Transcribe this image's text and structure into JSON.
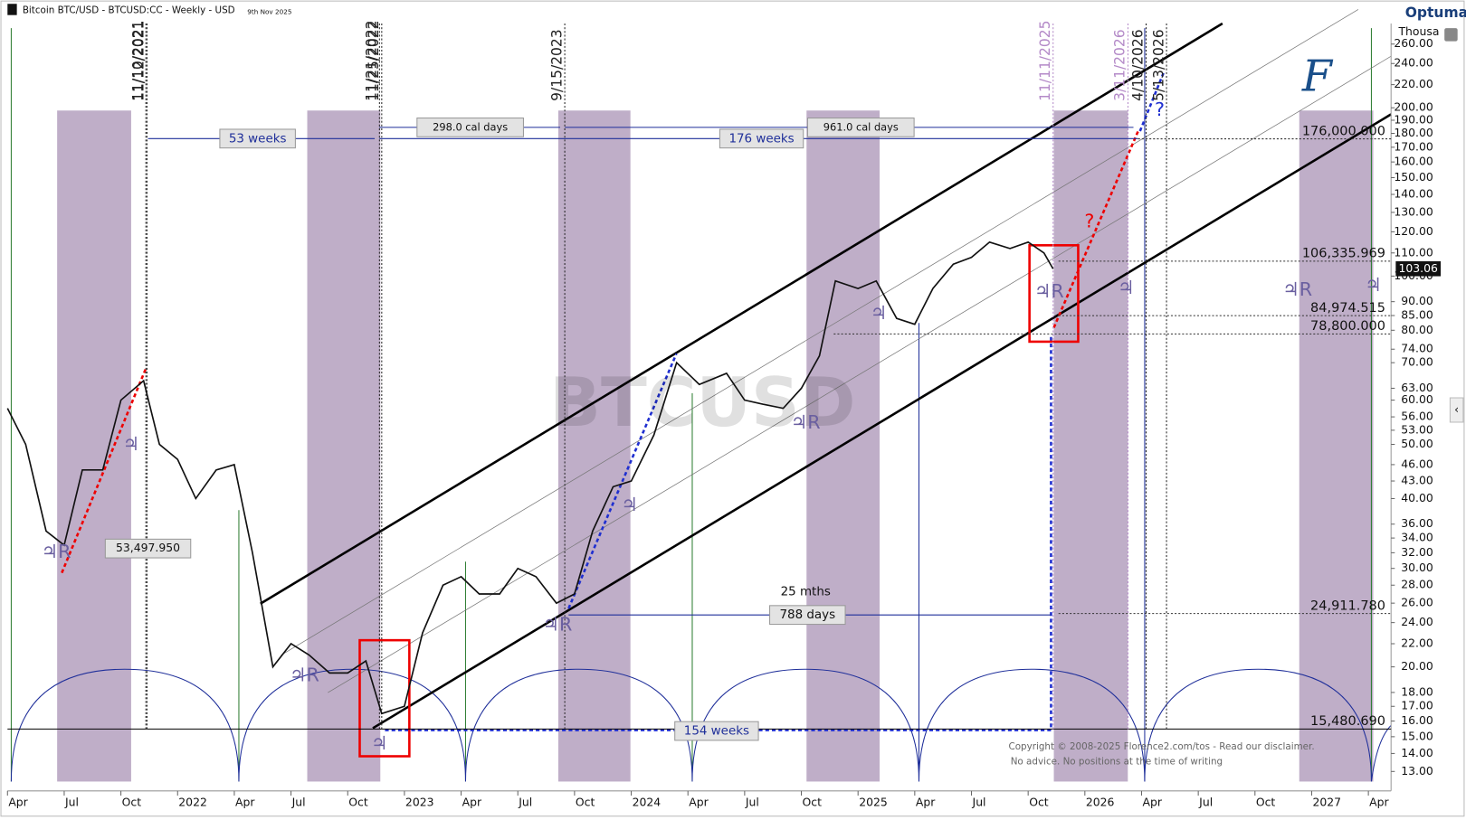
{
  "chart_data": {
    "type": "line",
    "title": "Bitcoin BTC/USD - BTCUSD:CC - Weekly - USD",
    "subtitle": "9th Nov 2025",
    "brand": "Optuma",
    "unit_label": "Thousa",
    "watermark": "BTCUSD",
    "log_scale": true,
    "x": [
      2021.25,
      2021.33,
      2021.42,
      2021.5,
      2021.58,
      2021.67,
      2021.75,
      2021.85,
      2021.92,
      2022.0,
      2022.08,
      2022.17,
      2022.25,
      2022.33,
      2022.42,
      2022.5,
      2022.58,
      2022.67,
      2022.75,
      2022.83,
      2022.9,
      2023.0,
      2023.08,
      2023.17,
      2023.25,
      2023.33,
      2023.42,
      2023.5,
      2023.58,
      2023.67,
      2023.75,
      2023.83,
      2023.92,
      2024.0,
      2024.1,
      2024.2,
      2024.3,
      2024.42,
      2024.5,
      2024.58,
      2024.67,
      2024.75,
      2024.83,
      2024.9,
      2025.0,
      2025.08,
      2025.17,
      2025.25,
      2025.33,
      2025.42,
      2025.5,
      2025.58,
      2025.67,
      2025.75,
      2025.82,
      2025.86
    ],
    "series": [
      {
        "name": "BTCUSD",
        "color": "#111111",
        "values": [
          58,
          50,
          35,
          33,
          45,
          45,
          60,
          65,
          50,
          47,
          40,
          45,
          46,
          32,
          20,
          22,
          21,
          19.5,
          19.5,
          20.5,
          16.5,
          17,
          23,
          28,
          29,
          27,
          27,
          30,
          29,
          26,
          27,
          35,
          42,
          43,
          52,
          70,
          64,
          67,
          60,
          59,
          58,
          63,
          72,
          98,
          95,
          98,
          84,
          82,
          95,
          105,
          108,
          115,
          112,
          115,
          110,
          103
        ]
      }
    ],
    "last_price": 103.06,
    "xlim": [
      2021.25,
      2027.35
    ],
    "ylim": [
      12,
      283
    ],
    "xticks": [
      {
        "value": 2021.25,
        "label": "Apr"
      },
      {
        "value": 2021.5,
        "label": "Jul"
      },
      {
        "value": 2021.75,
        "label": "Oct"
      },
      2022,
      {
        "value": 2022.25,
        "label": "Apr"
      },
      {
        "value": 2022.5,
        "label": "Jul"
      },
      {
        "value": 2022.75,
        "label": "Oct"
      },
      2023,
      {
        "value": 2023.25,
        "label": "Apr"
      },
      {
        "value": 2023.5,
        "label": "Jul"
      },
      {
        "value": 2023.75,
        "label": "Oct"
      },
      2024,
      {
        "value": 2024.25,
        "label": "Apr"
      },
      {
        "value": 2024.5,
        "label": "Jul"
      },
      {
        "value": 2024.75,
        "label": "Oct"
      },
      2025,
      {
        "value": 2025.25,
        "label": "Apr"
      },
      {
        "value": 2025.5,
        "label": "Jul"
      },
      {
        "value": 2025.75,
        "label": "Oct"
      },
      2026,
      {
        "value": 2026.25,
        "label": "Apr"
      },
      {
        "value": 2026.5,
        "label": "Jul"
      },
      {
        "value": 2026.75,
        "label": "Oct"
      },
      2027,
      {
        "value": 2027.25,
        "label": "Apr"
      }
    ],
    "yticks": [
      {
        "value": 260,
        "label": "260.00"
      },
      {
        "value": 240,
        "label": "240.00"
      },
      {
        "value": 220,
        "label": "220.00"
      },
      {
        "value": 200,
        "label": "200.00"
      },
      {
        "value": 190,
        "label": "190.00"
      },
      {
        "value": 180,
        "label": "180.00"
      },
      {
        "value": 170,
        "label": "170.00"
      },
      {
        "value": 160,
        "label": "160.00"
      },
      {
        "value": 150,
        "label": "150.00"
      },
      {
        "value": 140,
        "label": "140.00"
      },
      {
        "value": 130,
        "label": "130.00"
      },
      {
        "value": 120,
        "label": "120.00"
      },
      {
        "value": 110,
        "label": "110.00"
      },
      {
        "value": 100,
        "label": "100.00"
      },
      {
        "value": 90,
        "label": "90.00"
      },
      {
        "value": 85,
        "label": "85.00"
      },
      {
        "value": 80,
        "label": "80.00"
      },
      {
        "value": 74,
        "label": "74.00"
      },
      {
        "value": 70,
        "label": "70.00"
      },
      {
        "value": 63,
        "label": "63.00"
      },
      {
        "value": 60,
        "label": "60.00"
      },
      {
        "value": 56,
        "label": "56.00"
      },
      {
        "value": 53,
        "label": "53.00"
      },
      {
        "value": 50,
        "label": "50.00"
      },
      {
        "value": 46,
        "label": "46.00"
      },
      {
        "value": 43,
        "label": "43.00"
      },
      {
        "value": 40,
        "label": "40.00"
      },
      {
        "value": 36,
        "label": "36.00"
      },
      {
        "value": 34,
        "label": "34.00"
      },
      {
        "value": 32,
        "label": "32.00"
      },
      {
        "value": 30,
        "label": "30.00"
      },
      {
        "value": 28,
        "label": "28.00"
      },
      {
        "value": 26,
        "label": "26.00"
      },
      {
        "value": 24,
        "label": "24.00"
      },
      {
        "value": 22,
        "label": "22.00"
      },
      {
        "value": 20,
        "label": "20.00"
      },
      {
        "value": 18,
        "label": "18.00"
      },
      {
        "value": 17,
        "label": "17.00"
      },
      {
        "value": 16,
        "label": "16.00"
      },
      {
        "value": 15,
        "label": "15.00"
      },
      {
        "value": 14,
        "label": "14.00"
      },
      {
        "value": 13,
        "label": "13.00"
      }
    ],
    "levels": [
      {
        "value": 176,
        "label": "176,000.000"
      },
      {
        "value": 106.336,
        "label": "106,335.969"
      },
      {
        "value": 84.975,
        "label": "84,974.515"
      },
      {
        "value": 78.8,
        "label": "78,800.000"
      },
      {
        "value": 24.912,
        "label": "24,911.780"
      },
      {
        "value": 15.481,
        "label": "15,480.690"
      }
    ],
    "date_lines": [
      {
        "x": 2021.86,
        "label": "11/10/2021",
        "color": "#222222"
      },
      {
        "x": 2021.865,
        "label": "11/12/2021",
        "color": "#222222"
      },
      {
        "x": 2022.89,
        "label": "11/21/2022",
        "color": "#222222"
      },
      {
        "x": 2022.9,
        "label": "11/25/2022",
        "color": "#222222"
      },
      {
        "x": 2023.707,
        "label": "9/15/2023",
        "color": "#222222"
      },
      {
        "x": 2025.86,
        "label": "11/11/2025",
        "color": "#b48ac8"
      },
      {
        "x": 2026.19,
        "label": "3/11/2026",
        "color": "#b48ac8"
      },
      {
        "x": 2026.27,
        "label": "4/10/2026",
        "color": "#222222"
      },
      {
        "x": 2026.36,
        "label": "5/13/2026",
        "color": "#222222"
      }
    ],
    "annotations": [
      "53 weeks",
      "298.0 cal days",
      "176 weeks",
      "961.0 cal days",
      "25 mths",
      "788 days",
      "154 weeks",
      "53,497.950",
      "?",
      "?",
      "Copyright © 2008-2025 Florence2.com/tos -  Read our disclaimer.",
      "No advice. No positions at the time of writing"
    ],
    "glyphs": [
      "♃R",
      "♃R",
      "♃R",
      "♃R",
      "♃R",
      "♃R",
      "♃",
      "♃",
      "♃",
      "♃",
      "♃",
      "♃"
    ]
  }
}
